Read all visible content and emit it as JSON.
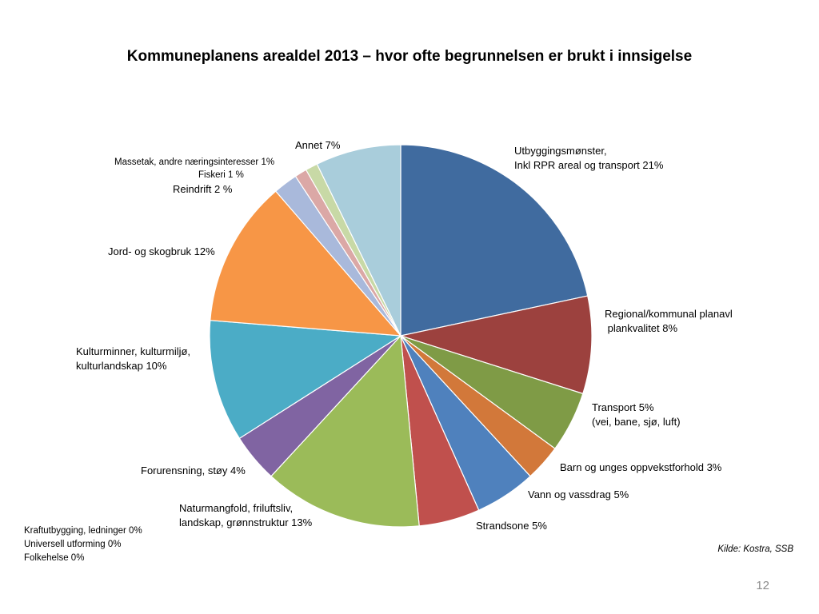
{
  "chart_data": {
    "type": "pie",
    "title": "Kommuneplanens arealdel 2013 – hvor ofte begrunnelsen er brukt i innsigelse",
    "slices": [
      {
        "label": "Utbyggingsmønster,\nInkl RPR areal og transport 21%",
        "value": 21,
        "color": "#406B9F"
      },
      {
        "label": "Regional/kommunal planavl\n plankvalitet 8%",
        "value": 8,
        "color": "#9C413E"
      },
      {
        "label": "Transport 5%\n(vei, bane, sjø, luft)",
        "value": 5,
        "color": "#7F9B46"
      },
      {
        "label": "Barn og unges oppvekstforhold 3%",
        "value": 3,
        "color": "#D2783A"
      },
      {
        "label": "Vann og vassdrag 5%",
        "value": 5,
        "color": "#4F81BD"
      },
      {
        "label": "Strandsone 5%",
        "value": 5,
        "color": "#C0504D"
      },
      {
        "label": "Naturmangfold, friluftsliv,\nlandskap, grønnstruktur 13%",
        "value": 13,
        "color": "#9BBB59"
      },
      {
        "label": "Forurensning, støy 4%",
        "value": 4,
        "color": "#8064A2"
      },
      {
        "label": "Kulturminner, kulturmiljø,\nkulturlandskap 10%",
        "value": 10,
        "color": "#4BACC6"
      },
      {
        "label": "Jord- og skogbruk 12%",
        "value": 12,
        "color": "#F79646"
      },
      {
        "label": "Reindrift 2 %",
        "value": 2,
        "color": "#A9B9DB"
      },
      {
        "label": "Fiskeri 1 %",
        "value": 1,
        "color": "#DBA8A6"
      },
      {
        "label": "Massetak, andre næringsinteresser 1%",
        "value": 1,
        "color": "#C8D9A6"
      },
      {
        "label": "Annet 7%",
        "value": 7,
        "color": "#A9CDDB"
      }
    ],
    "zero_items": "Kraftutbygging, ledninger 0%\nUniversell utforming 0%\nFolkehelse 0%"
  },
  "source": "Kilde: Kostra, SSB",
  "page_number": "12"
}
